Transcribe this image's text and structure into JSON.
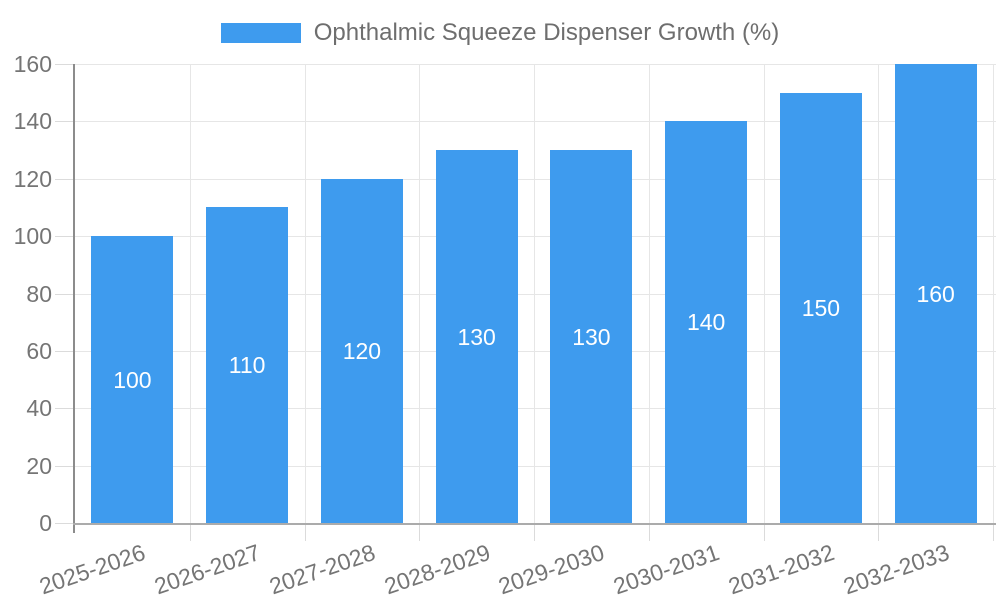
{
  "legend": {
    "label": "Ophthalmic Squeeze Dispenser Growth (%)"
  },
  "chart_data": {
    "type": "bar",
    "title": "",
    "xlabel": "",
    "ylabel": "",
    "categories": [
      "2025-2026",
      "2026-2027",
      "2027-2028",
      "2028-2029",
      "2029-2030",
      "2030-2031",
      "2031-2032",
      "2032-2033"
    ],
    "series": [
      {
        "name": "Ophthalmic Squeeze Dispenser Growth (%)",
        "values": [
          100,
          110,
          120,
          130,
          130,
          140,
          150,
          160
        ]
      }
    ],
    "bar_value_labels": [
      "100",
      "110",
      "120",
      "130",
      "130",
      "140",
      "150",
      "160"
    ],
    "ylim": [
      0,
      160
    ],
    "ytick_step": 20,
    "yticks": [
      0,
      20,
      40,
      60,
      80,
      100,
      120,
      140,
      160
    ],
    "grid": "on",
    "legend_position": "top",
    "colors": {
      "bar": "#3e9bee",
      "bar_label_text": "#ffffff",
      "axis_text": "#757575",
      "legend_text": "#6e6e6e",
      "gridline": "#e6e6e6",
      "axis_line": "#8c8c8c",
      "baseline": "#ababab"
    }
  }
}
